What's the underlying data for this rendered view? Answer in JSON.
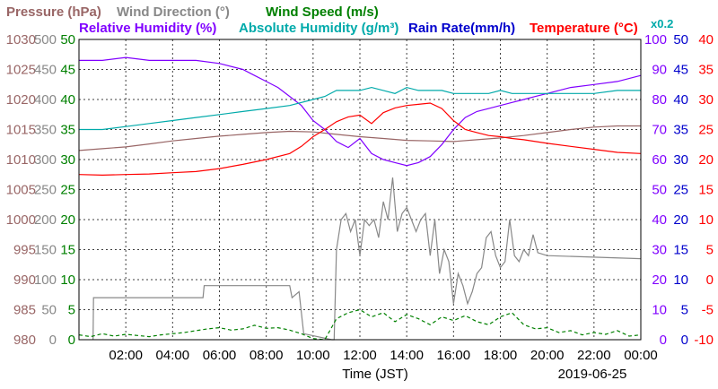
{
  "chart_data": {
    "type": "line",
    "x_label": "Time (JST)",
    "date_label": "2019-06-25",
    "x_ticks": [
      "02:00",
      "04:00",
      "06:00",
      "08:00",
      "10:00",
      "12:00",
      "14:00",
      "16:00",
      "18:00",
      "20:00",
      "22:00",
      "00:00"
    ],
    "x_range_hours": [
      0,
      24
    ],
    "grid": true,
    "titles": [
      {
        "text": "Pressure (hPa)",
        "color": "#996666"
      },
      {
        "text": "Wind Direction (°)",
        "color": "#888888"
      },
      {
        "text": "Wind Speed (m/s)",
        "color": "#008000"
      },
      {
        "text": "Relative Humidity (%)",
        "color": "#8000ff"
      },
      {
        "text": "Absolute Humidity (g/m³)",
        "color": "#00aaaa"
      },
      {
        "text": "Rain Rate(mm/h)",
        "color": "#0000cc"
      },
      {
        "text": "Temperature (°C)",
        "color": "#ff0000"
      },
      {
        "text": "x0.2",
        "color": "#00aaaa"
      }
    ],
    "axes": {
      "pressure": {
        "color": "#996666",
        "min": 980,
        "max": 1030,
        "ticks": [
          "980",
          "985",
          "990",
          "995",
          "1000",
          "1005",
          "1010",
          "1015",
          "1020",
          "1025",
          "1030"
        ]
      },
      "wind_direction": {
        "color": "#888888",
        "min": 0,
        "max": 500,
        "ticks": [
          "0",
          "50",
          "100",
          "150",
          "200",
          "250",
          "300",
          "350",
          "400",
          "450",
          "500"
        ]
      },
      "wind_speed": {
        "color": "#008000",
        "min": 0,
        "max": 50,
        "ticks": [
          "0",
          "5",
          "10",
          "15",
          "20",
          "25",
          "30",
          "35",
          "40",
          "45",
          "50"
        ]
      },
      "humidity": {
        "color": "#8000ff",
        "min": 0,
        "max": 100,
        "ticks": [
          "0",
          "10",
          "20",
          "30",
          "40",
          "50",
          "60",
          "70",
          "80",
          "90",
          "100"
        ]
      },
      "rain_rate": {
        "color": "#0000cc",
        "min": 0,
        "max": 50,
        "ticks": [
          "0",
          "5",
          "10",
          "15",
          "20",
          "25",
          "30",
          "35",
          "40",
          "45",
          "50"
        ]
      },
      "temperature": {
        "color": "#ff0000",
        "min": -10,
        "max": 40,
        "ticks": [
          "-10",
          "-5",
          "0",
          "5",
          "10",
          "15",
          "20",
          "25",
          "30",
          "35",
          "40"
        ]
      }
    },
    "series": [
      {
        "name": "Pressure (hPa)",
        "axis": "pressure",
        "color": "#996666",
        "x": [
          0,
          1,
          2,
          3,
          4,
          5,
          6,
          7,
          8,
          9,
          10,
          11,
          12,
          13,
          14,
          15,
          16,
          17,
          18,
          19,
          20,
          21,
          22,
          23,
          24
        ],
        "y": [
          1011.5,
          1011.8,
          1012.1,
          1012.6,
          1013.1,
          1013.5,
          1013.9,
          1014.2,
          1014.5,
          1014.7,
          1014.6,
          1014.2,
          1013.8,
          1013.5,
          1013.2,
          1013.1,
          1013.0,
          1013.3,
          1013.6,
          1014.0,
          1014.5,
          1015.0,
          1015.4,
          1015.6,
          1015.6
        ]
      },
      {
        "name": "Wind Direction (°)",
        "axis": "wind_direction",
        "color": "#888888",
        "x": [
          0.0,
          0.2,
          0.6,
          0.62,
          5.3,
          5.35,
          9.0,
          9.1,
          9.4,
          9.6,
          10.8,
          10.9,
          11.0,
          11.2,
          11.4,
          11.6,
          11.8,
          12.0,
          12.2,
          12.4,
          12.6,
          12.8,
          13.0,
          13.2,
          13.4,
          13.6,
          13.8,
          14.0,
          14.2,
          14.4,
          14.6,
          14.8,
          15.0,
          15.2,
          15.4,
          15.6,
          15.8,
          16.0,
          16.2,
          16.4,
          16.6,
          16.8,
          17.0,
          17.2,
          17.4,
          17.6,
          17.8,
          18.0,
          18.2,
          18.4,
          18.6,
          18.8,
          19.0,
          19.2,
          19.4,
          19.6,
          20.0,
          24.0
        ],
        "y": [
          null,
          null,
          0,
          70,
          70,
          90,
          90,
          70,
          80,
          10,
          0,
          0,
          150,
          200,
          210,
          180,
          200,
          140,
          200,
          190,
          200,
          170,
          230,
          200,
          270,
          180,
          210,
          220,
          200,
          180,
          200,
          210,
          140,
          200,
          110,
          150,
          130,
          60,
          110,
          90,
          60,
          80,
          110,
          120,
          170,
          180,
          140,
          120,
          130,
          200,
          140,
          130,
          150,
          140,
          175,
          145,
          140,
          135
        ]
      },
      {
        "name": "Wind Speed (m/s)",
        "axis": "wind_speed",
        "color": "#008000",
        "x": [
          0,
          0.5,
          1,
          1.5,
          2,
          2.5,
          3,
          3.5,
          4,
          4.5,
          5,
          5.5,
          6,
          6.5,
          7,
          7.5,
          8,
          8.5,
          9,
          9.5,
          10,
          10.5,
          11,
          11.5,
          12,
          12.5,
          13,
          13.5,
          14,
          14.5,
          15,
          15.5,
          16,
          16.5,
          17,
          17.5,
          18,
          18.5,
          19,
          19.5,
          20,
          20.5,
          21,
          21.5,
          22,
          22.5,
          23,
          23.5,
          24
        ],
        "y": [
          0.8,
          0.5,
          1.0,
          0.6,
          0.9,
          0.7,
          0.5,
          0.8,
          1.0,
          1.2,
          1.5,
          1.8,
          2.0,
          1.6,
          1.8,
          2.4,
          1.9,
          2.0,
          1.6,
          1.0,
          0.2,
          0,
          3.5,
          4.5,
          5.0,
          3.8,
          4.5,
          3.0,
          4.2,
          3.5,
          2.5,
          3.8,
          3.2,
          4.0,
          3.0,
          2.5,
          3.8,
          4.5,
          2.5,
          1.8,
          2.0,
          1.2,
          1.5,
          0.8,
          1.2,
          0.9,
          1.5,
          0.6,
          0.8
        ]
      },
      {
        "name": "Relative Humidity (%)",
        "axis": "humidity",
        "color": "#8000ff",
        "x": [
          0,
          1,
          2,
          3,
          4,
          5,
          6,
          7,
          7.5,
          8,
          8.5,
          9,
          9.5,
          10,
          10.5,
          11,
          11.5,
          12,
          12.5,
          13,
          13.5,
          14,
          14.5,
          15,
          15.5,
          16,
          16.5,
          17,
          17.5,
          18,
          18.5,
          19,
          19.5,
          20,
          21,
          22,
          23,
          24
        ],
        "y": [
          93,
          93,
          94,
          93,
          93,
          93,
          92,
          90,
          88,
          86,
          84,
          81,
          78,
          73,
          70,
          66,
          64,
          67,
          62,
          60,
          59,
          58,
          59,
          61,
          65,
          70,
          74,
          76,
          77,
          78,
          79,
          80,
          81,
          82,
          84,
          85,
          86,
          88
        ]
      },
      {
        "name": "Absolute Humidity (g/m³)",
        "axis": "humidity",
        "color": "#00aaaa",
        "x": [
          0,
          1,
          2,
          3,
          4,
          5,
          6,
          7,
          8,
          9,
          10,
          10.5,
          11,
          11.5,
          12,
          12.5,
          13,
          13.5,
          14,
          14.5,
          15,
          15.5,
          16,
          16.5,
          17,
          17.5,
          18,
          18.5,
          19,
          19.5,
          20,
          21,
          22,
          23,
          24
        ],
        "y": [
          70,
          70,
          71,
          72,
          73,
          74,
          75,
          76,
          77,
          78,
          80,
          81,
          83,
          83,
          83,
          84,
          83,
          82,
          84,
          83,
          83,
          83,
          82,
          82,
          82,
          82,
          83,
          82,
          82,
          82,
          82,
          82,
          82,
          83,
          83
        ]
      },
      {
        "name": "Temperature (°C)",
        "axis": "temperature",
        "color": "#ff0000",
        "x": [
          0,
          1,
          2,
          3,
          4,
          5,
          6,
          7,
          8,
          9,
          9.5,
          10,
          10.5,
          11,
          11.5,
          12,
          12.5,
          13,
          13.5,
          14,
          14.5,
          15,
          15.5,
          16,
          16.5,
          17,
          17.5,
          18,
          18.5,
          19,
          19.5,
          20,
          21,
          22,
          23,
          24
        ],
        "y": [
          17.5,
          17.4,
          17.5,
          17.6,
          17.8,
          18,
          18.5,
          19.2,
          20,
          21,
          22.2,
          23.8,
          25,
          26.3,
          27.1,
          27.4,
          26,
          27.8,
          28.6,
          29,
          29.2,
          29.4,
          28.5,
          26.5,
          25,
          24.5,
          24,
          23.8,
          23.5,
          23.3,
          23,
          22.7,
          22.2,
          21.7,
          21.2,
          21
        ]
      }
    ]
  }
}
